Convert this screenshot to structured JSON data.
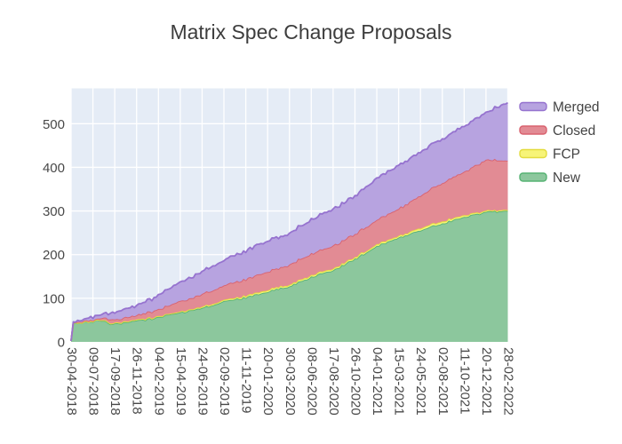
{
  "chart": {
    "title": "Matrix Spec Change Proposals"
  },
  "chart_data": {
    "type": "area",
    "stacked": true,
    "title": "Matrix Spec Change Proposals",
    "xlabel": "",
    "ylabel": "",
    "grid": true,
    "legend_position": "right-top",
    "legend_entries": [
      "Merged",
      "Closed",
      "FCP",
      "New"
    ],
    "x_axis": {
      "type": "date",
      "tick_labels": [
        "30-04-2018",
        "09-07-2018",
        "17-09-2018",
        "26-11-2018",
        "04-02-2019",
        "15-04-2019",
        "24-06-2019",
        "02-09-2019",
        "11-11-2019",
        "20-01-2020",
        "30-03-2020",
        "08-06-2020",
        "17-08-2020",
        "26-10-2020",
        "04-01-2021",
        "15-03-2021",
        "24-05-2021",
        "02-08-2021",
        "11-10-2021",
        "20-12-2021",
        "28-02-2022"
      ]
    },
    "y_axis": {
      "ticks": [
        0,
        100,
        200,
        300,
        400,
        500
      ],
      "range": [
        0,
        581
      ]
    },
    "colors": {
      "plot_background": "#e5ecf6",
      "grid": "#ffffff",
      "tick_text": "#484848",
      "title_text": "#3d3d3d"
    },
    "dates": [
      "30-04-2018",
      "07-05-2018",
      "28-05-2018",
      "09-07-2018",
      "30-07-2018",
      "20-08-2018",
      "05-09-2018",
      "17-09-2018",
      "15-10-2018",
      "26-11-2018",
      "04-02-2019",
      "15-04-2019",
      "24-06-2019",
      "02-09-2019",
      "11-11-2019",
      "20-01-2020",
      "30-03-2020",
      "08-06-2020",
      "17-08-2020",
      "26-10-2020",
      "04-01-2021",
      "15-03-2021",
      "24-05-2021",
      "02-08-2021",
      "11-10-2021",
      "20-12-2021",
      "28-02-2022"
    ],
    "series": [
      {
        "name": "New",
        "line_color": "#57b374",
        "fill_color": "#8cc79d",
        "values": [
          2,
          42,
          44,
          46,
          50,
          48,
          41,
          42,
          44,
          48,
          56,
          67,
          78,
          92,
          102,
          116,
          127,
          149,
          164,
          190,
          220,
          238,
          255,
          272,
          285,
          298,
          300
        ]
      },
      {
        "name": "FCP",
        "line_color": "#e3dc3f",
        "fill_color": "#f7f478",
        "values": [
          0,
          1,
          1,
          1,
          1,
          2,
          2,
          2,
          2,
          2,
          2,
          2,
          3,
          3,
          4,
          4,
          4,
          4,
          4,
          4,
          4,
          4,
          5,
          5,
          4,
          3,
          2
        ]
      },
      {
        "name": "Closed",
        "line_color": "#d9626f",
        "fill_color": "#e28b94",
        "values": [
          0,
          1,
          2,
          3,
          4,
          6,
          8,
          8,
          9,
          10,
          16,
          24,
          28,
          34,
          38,
          42,
          46,
          49,
          52,
          54,
          56,
          62,
          75,
          88,
          100,
          117,
          113
        ]
      },
      {
        "name": "Merged",
        "line_color": "#9673cf",
        "fill_color": "#b7a3e0",
        "values": [
          0,
          2,
          3,
          7,
          8,
          10,
          14,
          16,
          19,
          22,
          32,
          44,
          52,
          58,
          65,
          70,
          72,
          78,
          84,
          88,
          95,
          100,
          100,
          101,
          105,
          108,
          133
        ]
      }
    ]
  }
}
